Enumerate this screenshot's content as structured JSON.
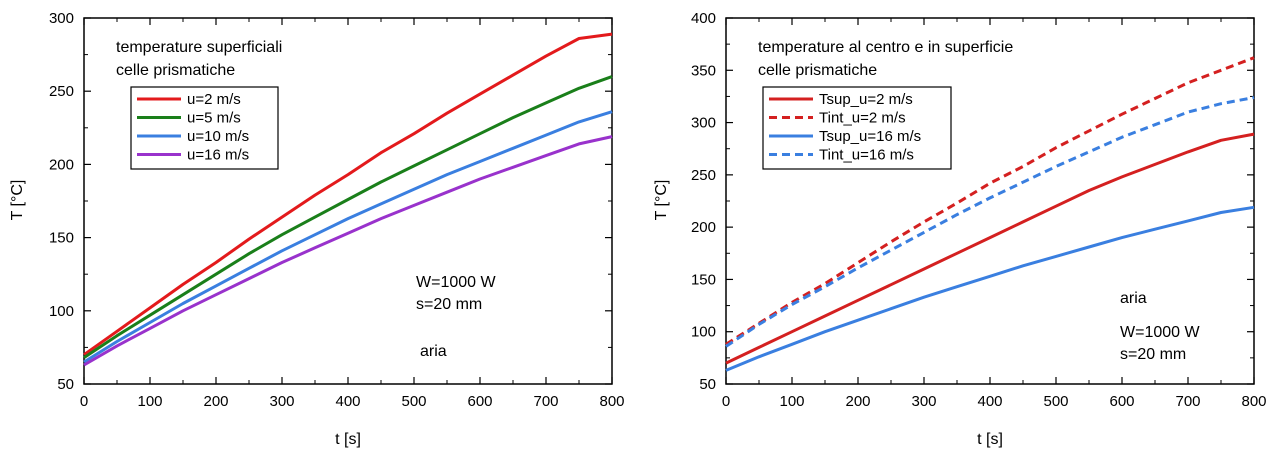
{
  "chart_data": [
    {
      "type": "line",
      "xlabel": "t [s]",
      "ylabel": "T [°C]",
      "xlim": [
        0,
        800
      ],
      "ylim": [
        50,
        300
      ],
      "xticks": [
        "0",
        "100",
        "200",
        "300",
        "400",
        "500",
        "600",
        "700",
        "800"
      ],
      "yticks": [
        "50",
        "100",
        "150",
        "200",
        "250",
        "300"
      ],
      "grid": false,
      "legend_position": "top-left",
      "annotations": [
        "temperature superficiali",
        "celle prismatiche",
        "W=1000 W",
        "s=20 mm",
        "aria"
      ],
      "series": [
        {
          "name": "u=2 m/s",
          "color": "#e31a1c",
          "dash": false,
          "x": [
            0,
            50,
            100,
            150,
            200,
            250,
            300,
            350,
            400,
            450,
            500,
            550,
            600,
            650,
            700,
            750,
            800
          ],
          "y": [
            70,
            86,
            102,
            118,
            133,
            149,
            164,
            179,
            193,
            208,
            221,
            235,
            248,
            261,
            274,
            286,
            289
          ]
        },
        {
          "name": "u=5 m/s",
          "color": "#1a7f1a",
          "dash": false,
          "x": [
            0,
            50,
            100,
            150,
            200,
            250,
            300,
            350,
            400,
            450,
            500,
            550,
            600,
            650,
            700,
            750,
            800
          ],
          "y": [
            68,
            83,
            97,
            111,
            125,
            139,
            152,
            164,
            176,
            188,
            199,
            210,
            221,
            232,
            242,
            252,
            260
          ]
        },
        {
          "name": "u=10 m/s",
          "color": "#3a7fe0",
          "dash": false,
          "x": [
            0,
            50,
            100,
            150,
            200,
            250,
            300,
            350,
            400,
            450,
            500,
            550,
            600,
            650,
            700,
            750,
            800
          ],
          "y": [
            65,
            79,
            92,
            105,
            117,
            129,
            141,
            152,
            163,
            173,
            183,
            193,
            202,
            211,
            220,
            229,
            236
          ]
        },
        {
          "name": "u=16 m/s",
          "color": "#9932cc",
          "dash": false,
          "x": [
            0,
            50,
            100,
            150,
            200,
            250,
            300,
            350,
            400,
            450,
            500,
            550,
            600,
            650,
            700,
            750,
            800
          ],
          "y": [
            63,
            76,
            88,
            100,
            111,
            122,
            133,
            143,
            153,
            163,
            172,
            181,
            190,
            198,
            206,
            214,
            219
          ]
        }
      ]
    },
    {
      "type": "line",
      "xlabel": "t [s]",
      "ylabel": "T [°C]",
      "xlim": [
        0,
        800
      ],
      "ylim": [
        50,
        400
      ],
      "xticks": [
        "0",
        "100",
        "200",
        "300",
        "400",
        "500",
        "600",
        "700",
        "800"
      ],
      "yticks": [
        "50",
        "100",
        "150",
        "200",
        "250",
        "300",
        "350",
        "400"
      ],
      "grid": false,
      "legend_position": "top-left",
      "annotations": [
        "temperature al centro e in superficie",
        "celle prismatiche",
        "aria",
        "W=1000 W",
        "s=20 mm"
      ],
      "series": [
        {
          "name": "Tsup_u=2 m/s",
          "color": "#d42020",
          "dash": false,
          "x": [
            0,
            50,
            100,
            150,
            200,
            250,
            300,
            350,
            400,
            450,
            500,
            550,
            600,
            650,
            700,
            750,
            800
          ],
          "y": [
            70,
            85,
            100,
            115,
            130,
            145,
            160,
            175,
            190,
            205,
            220,
            235,
            248,
            260,
            272,
            283,
            289
          ]
        },
        {
          "name": "Tint_u=2 m/s",
          "color": "#d42020",
          "dash": true,
          "x": [
            0,
            50,
            100,
            150,
            200,
            250,
            300,
            350,
            400,
            450,
            500,
            550,
            600,
            650,
            700,
            750,
            800
          ],
          "y": [
            88,
            108,
            128,
            146,
            166,
            186,
            205,
            223,
            242,
            258,
            276,
            292,
            308,
            323,
            338,
            350,
            362
          ]
        },
        {
          "name": "Tsup_u=16 m/s",
          "color": "#3a7fe0",
          "dash": false,
          "x": [
            0,
            50,
            100,
            150,
            200,
            250,
            300,
            350,
            400,
            450,
            500,
            550,
            600,
            650,
            700,
            750,
            800
          ],
          "y": [
            63,
            76,
            88,
            100,
            111,
            122,
            133,
            143,
            153,
            163,
            172,
            181,
            190,
            198,
            206,
            214,
            219
          ]
        },
        {
          "name": "Tint_u=16 m/s",
          "color": "#3a7fe0",
          "dash": true,
          "x": [
            0,
            50,
            100,
            150,
            200,
            250,
            300,
            350,
            400,
            450,
            500,
            550,
            600,
            650,
            700,
            750,
            800
          ],
          "y": [
            86,
            107,
            126,
            143,
            161,
            178,
            195,
            212,
            228,
            243,
            258,
            272,
            286,
            298,
            310,
            318,
            324
          ]
        }
      ]
    }
  ]
}
